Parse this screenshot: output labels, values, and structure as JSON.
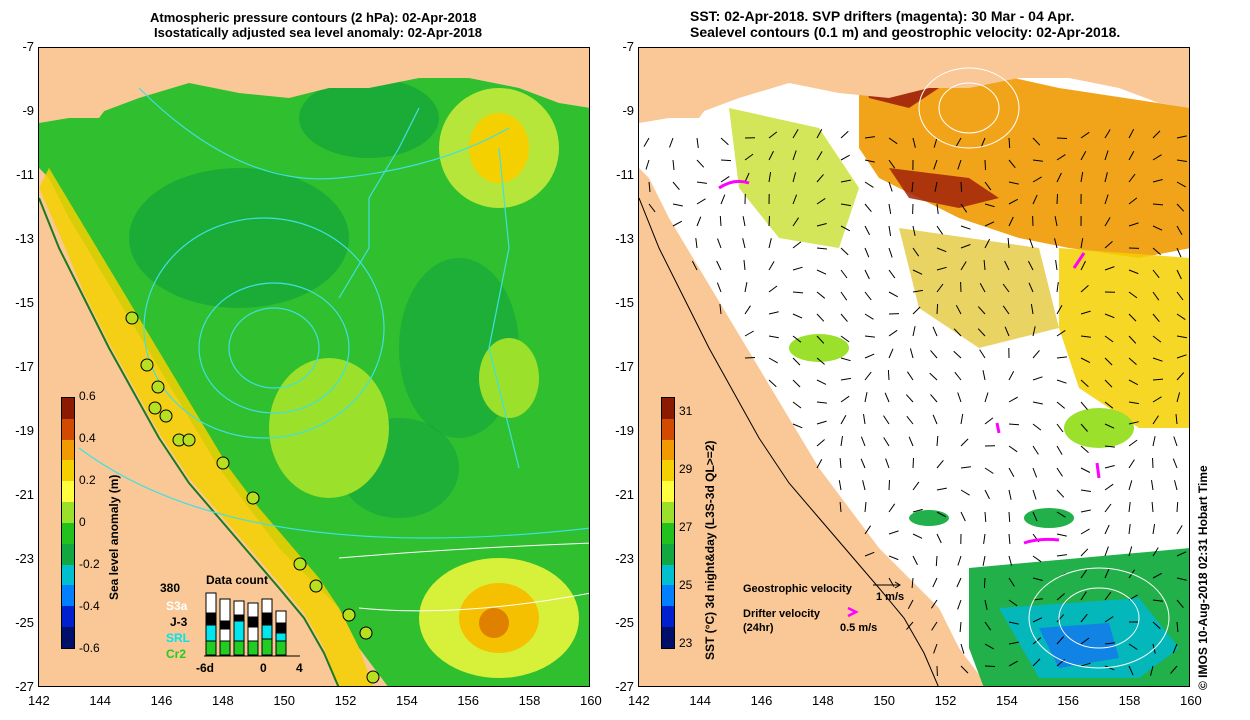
{
  "left_panel": {
    "title_line1": "Atmospheric pressure contours (2 hPa): 02-Apr-2018",
    "title_line2": "Isostatically adjusted sea level anomaly: 02-Apr-2018",
    "colorbar": {
      "label": "Sea level anomaly (m)",
      "ticks": [
        "0.6",
        "0.4",
        "0.2",
        "0",
        "-0.2",
        "-0.4",
        "-0.6"
      ],
      "colors": [
        "#8b1a00",
        "#d24a00",
        "#f09a00",
        "#f5d000",
        "#ffff40",
        "#9be02a",
        "#22c21e",
        "#12a840",
        "#00c0d0",
        "#0080ff",
        "#0020d0",
        "#00106a"
      ]
    },
    "data_count": {
      "title": "Data count",
      "max_label": "380",
      "missions": [
        "S3a",
        "J-3",
        "SRL",
        "Cr2"
      ],
      "mission_colors": [
        "#ffffff",
        "#000000",
        "#00e5ee",
        "#22cc22"
      ],
      "x_ticks": [
        "-6d",
        "0",
        "4"
      ]
    }
  },
  "right_panel": {
    "title_line1": "SST: 02-Apr-2018. SVP drifters (magenta): 30 Mar - 04 Apr.",
    "title_line2": "Sealevel contours (0.1 m) and geostrophic velocity: 02-Apr-2018.",
    "colorbar": {
      "label": "SST (°C) 3d night&day (L3S-3d QL>=2)",
      "ticks": [
        "31",
        "29",
        "27",
        "25",
        "23"
      ],
      "colors": [
        "#8b1a00",
        "#d24a00",
        "#f09a00",
        "#f5d000",
        "#ffff40",
        "#9be02a",
        "#22c21e",
        "#12a840",
        "#00c0d0",
        "#0080ff",
        "#0020d0",
        "#00106a"
      ]
    },
    "legend": {
      "geostrophic_label": "Geostrophic velocity",
      "geostrophic_scale": "1 m/s",
      "drifter_label": "Drifter velocity",
      "drifter_sub": "(24hr)",
      "drifter_scale": "0.5 m/s"
    },
    "credit": "© IMOS 10-Aug-2018 02:31 Hobart Time"
  },
  "axes": {
    "x_ticks": [
      "142",
      "144",
      "146",
      "148",
      "150",
      "152",
      "154",
      "156",
      "158",
      "160"
    ],
    "y_ticks": [
      "-7",
      "-9",
      "-11",
      "-13",
      "-15",
      "-17",
      "-19",
      "-21",
      "-23",
      "-25",
      "-27"
    ],
    "lon_range": [
      142,
      160
    ],
    "lat_range": [
      -27,
      -7
    ]
  },
  "colors": {
    "land": "#f9c896",
    "ocean_green": "#2fbf2f",
    "contour": "#40e0e0",
    "drifter": "#ff00ff",
    "station_fill": "#ffff40"
  }
}
